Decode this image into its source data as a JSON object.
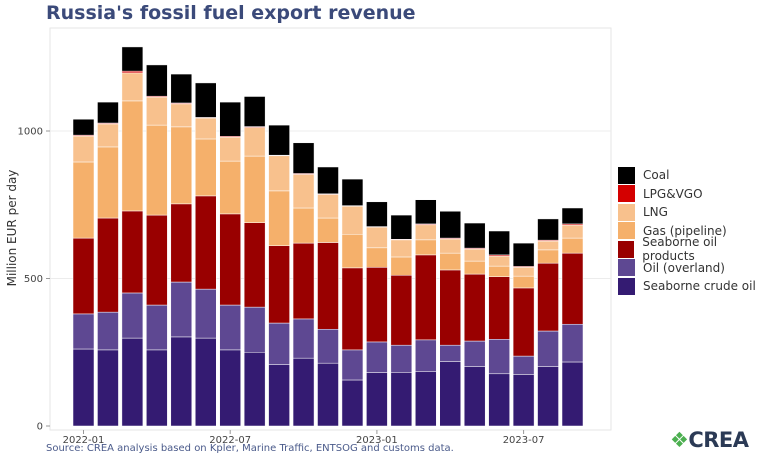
{
  "chart_data": {
    "type": "bar",
    "stacked": true,
    "title": "Russia's fossil fuel export revenue",
    "xlabel": "",
    "ylabel": "Million EUR per day",
    "ylim": [
      0,
      1330
    ],
    "yticks": [
      0,
      500,
      1000
    ],
    "xtick_labels": [
      "2022-01",
      "2022-07",
      "2023-01",
      "2023-07"
    ],
    "xtick_positions": [
      0,
      6,
      12,
      18
    ],
    "grid": true,
    "legend_position": "right",
    "categories": [
      "2022-01",
      "2022-02",
      "2022-03",
      "2022-04",
      "2022-05",
      "2022-06",
      "2022-07",
      "2022-08",
      "2022-09",
      "2022-10",
      "2022-11",
      "2022-12",
      "2023-01",
      "2023-02",
      "2023-03",
      "2023-04",
      "2023-05",
      "2023-06",
      "2023-07",
      "2023-08",
      "2023-09"
    ],
    "series": [
      {
        "name": "Seaborne crude oil",
        "color": "#341b72",
        "values": [
          261,
          258,
          298,
          258,
          302,
          298,
          258,
          250,
          208,
          230,
          213,
          156,
          181,
          182,
          184,
          219,
          202,
          177,
          175,
          202,
          217
        ]
      },
      {
        "name": "Oil (overland)",
        "color": "#5e4892",
        "values": [
          119,
          128,
          153,
          152,
          186,
          166,
          152,
          153,
          141,
          133,
          115,
          102,
          104,
          92,
          108,
          55,
          86,
          117,
          62,
          120,
          128
        ]
      },
      {
        "name": "Seaborne oil products",
        "color": "#990000",
        "values": [
          257,
          319,
          278,
          305,
          265,
          316,
          309,
          286,
          262,
          257,
          294,
          278,
          253,
          237,
          288,
          255,
          227,
          212,
          231,
          230,
          241
        ]
      },
      {
        "name": "Gas (pipeline)",
        "color": "#f5b06b",
        "values": [
          258,
          241,
          373,
          305,
          261,
          193,
          179,
          226,
          186,
          119,
          83,
          114,
          66,
          62,
          51,
          57,
          44,
          36,
          40,
          45,
          51
        ]
      },
      {
        "name": "LNG",
        "color": "#f8c18d",
        "values": [
          88,
          78,
          95,
          95,
          78,
          71,
          81,
          97,
          119,
          114,
          80,
          95,
          70,
          58,
          51,
          48,
          41,
          34,
          30,
          30,
          44
        ]
      },
      {
        "name": "LPG&VGO",
        "color": "#d40000",
        "values": [
          3,
          3,
          6,
          3,
          3,
          2,
          3,
          3,
          2,
          3,
          2,
          2,
          2,
          2,
          3,
          3,
          3,
          4,
          3,
          3,
          4
        ]
      },
      {
        "name": "Coal",
        "color": "#000000",
        "values": [
          54,
          71,
          82,
          106,
          98,
          117,
          116,
          102,
          102,
          104,
          91,
          90,
          84,
          82,
          82,
          91,
          85,
          81,
          79,
          72,
          54
        ]
      }
    ]
  },
  "source": "Source: CREA analysis based on Kpler, Marine Traffic, ENTSOG and customs data.",
  "logo_text": "CREA"
}
